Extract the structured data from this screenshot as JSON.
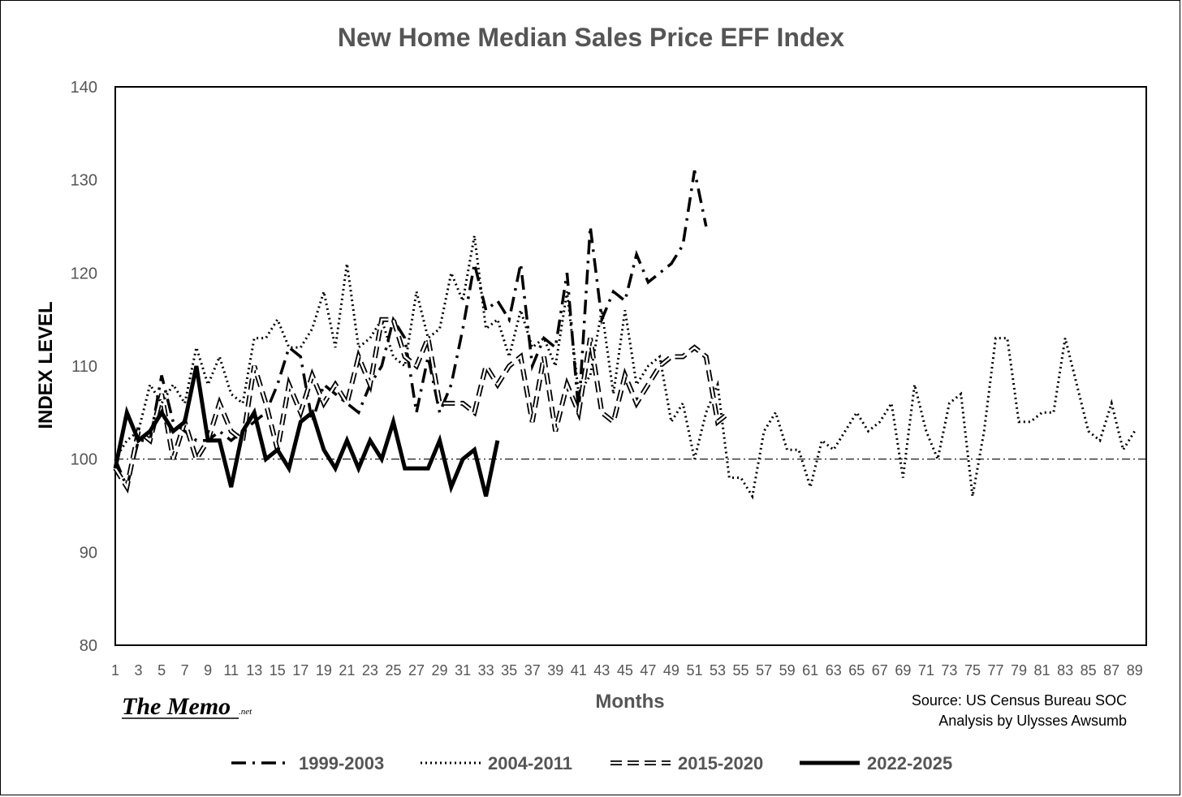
{
  "chart_data": {
    "type": "line",
    "title": "New Home Median Sales Price EFF Index",
    "xlabel": "Months",
    "ylabel": "INDEX LEVEL",
    "ylim": [
      80,
      140
    ],
    "yticks": [
      80,
      90,
      100,
      110,
      120,
      130,
      140
    ],
    "xlim": [
      1,
      90
    ],
    "xticks": [
      1,
      3,
      5,
      7,
      9,
      11,
      13,
      15,
      17,
      19,
      21,
      23,
      25,
      27,
      29,
      31,
      33,
      35,
      37,
      39,
      41,
      43,
      45,
      47,
      49,
      51,
      53,
      55,
      57,
      59,
      61,
      63,
      65,
      67,
      69,
      71,
      73,
      75,
      77,
      79,
      81,
      83,
      85,
      87,
      89
    ],
    "reference_line": 100,
    "legend_position": "bottom",
    "series": [
      {
        "name": "1999-2003",
        "style": "dashdot",
        "x_start": 1,
        "values": [
          100,
          97,
          102,
          102,
          109,
          104,
          103,
          102,
          102,
          103,
          102,
          103,
          104,
          105,
          108,
          112,
          111,
          104,
          108,
          107,
          106,
          105,
          108,
          110,
          115,
          113,
          105,
          111,
          105,
          108,
          114,
          121,
          116,
          117,
          115,
          121,
          110,
          113,
          112,
          120,
          105,
          125,
          115,
          118,
          117,
          122,
          119,
          120,
          121,
          123,
          131,
          125
        ]
      },
      {
        "name": "2004-2011",
        "style": "dotted",
        "x_start": 1,
        "values": [
          100,
          102,
          103,
          108,
          106,
          108,
          106,
          112,
          108,
          111,
          107,
          106,
          113,
          113,
          115,
          112,
          112,
          114,
          118,
          112,
          121,
          112,
          113,
          115,
          111,
          110,
          118,
          113,
          114,
          120,
          117,
          124,
          114,
          115,
          111,
          116,
          112,
          113,
          110,
          118,
          107,
          109,
          116,
          107,
          116,
          108,
          110,
          111,
          104,
          106,
          100,
          105,
          108,
          98,
          98,
          96,
          103,
          105,
          101,
          101,
          97,
          102,
          101,
          103,
          105,
          103,
          104,
          106,
          98,
          108,
          103,
          100,
          106,
          107,
          96,
          103,
          113,
          113,
          104,
          104,
          105,
          105,
          113,
          108,
          103,
          102,
          106,
          101,
          103
        ]
      },
      {
        "name": "2015-2020",
        "style": "dashed-double",
        "x_start": 1,
        "values": [
          99,
          97,
          103,
          102,
          107,
          100,
          104,
          100,
          102,
          106,
          103,
          102,
          110,
          106,
          101,
          108,
          105,
          109,
          106,
          108,
          106,
          111,
          108,
          115,
          115,
          111,
          110,
          113,
          106,
          106,
          106,
          105,
          110,
          108,
          110,
          111,
          104,
          111,
          103,
          108,
          105,
          113,
          105,
          104,
          109,
          106,
          108,
          110,
          111,
          111,
          112,
          111,
          104,
          105
        ]
      },
      {
        "name": "2022-2025",
        "style": "solid",
        "x_start": 1,
        "values": [
          99,
          105,
          102,
          103,
          105,
          103,
          104,
          110,
          102,
          102,
          97,
          103,
          105,
          100,
          101,
          99,
          104,
          105,
          101,
          99,
          102,
          99,
          102,
          100,
          104,
          99,
          99,
          99,
          102,
          97,
          100,
          101,
          96,
          102
        ]
      }
    ]
  },
  "source_line1": "Source: US Census Bureau SOC",
  "source_line2": "Analysis by Ulysses Awsumb",
  "logo_main": "The Memo",
  "logo_sub": ".net"
}
